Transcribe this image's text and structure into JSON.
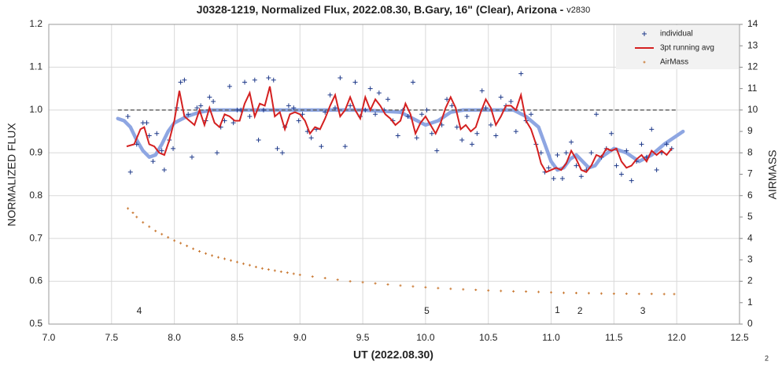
{
  "chart_data": {
    "type": "scatter",
    "title": "J0328-1219, Normalized Flux, 2022.08.30, B.Gary, 16\" (Clear), Arizona -",
    "subtitle": "v2830",
    "x_label": "UT (2022.08.30)",
    "y_label": "NORMALIZED FLUX",
    "y2_label": "AIRMASS",
    "xlim": [
      7.0,
      12.5
    ],
    "xticks": [
      {
        "value": 7,
        "label": "7.0"
      },
      7.5,
      {
        "value": 8,
        "label": "8.0"
      },
      8.5,
      {
        "value": 9,
        "label": "9.0"
      },
      9.5,
      {
        "value": 10,
        "label": "10.0"
      },
      10.5,
      {
        "value": 11,
        "label": "11.0"
      },
      11.5,
      {
        "value": 12,
        "label": "12.0"
      },
      12.5
    ],
    "ylim": [
      0.5,
      1.2
    ],
    "yticks": [
      0.5,
      0.6,
      0.7,
      0.8,
      0.9,
      {
        "value": 1,
        "label": "1.0"
      },
      1.1,
      1.2
    ],
    "y2lim": [
      0,
      14
    ],
    "y2ticks": [
      0,
      1,
      2,
      3,
      4,
      5,
      6,
      7,
      8,
      9,
      10,
      11,
      12,
      13,
      14
    ],
    "grid": true,
    "legend": "upper right",
    "series": [
      {
        "name": "individual",
        "color": "#1f3a8a",
        "marker": "plus",
        "x": [
          7.63,
          7.65,
          7.7,
          7.75,
          7.78,
          7.8,
          7.83,
          7.86,
          7.9,
          7.92,
          7.96,
          7.99,
          8.02,
          8.05,
          8.08,
          8.11,
          8.14,
          8.18,
          8.21,
          8.25,
          8.28,
          8.31,
          8.34,
          8.37,
          8.4,
          8.44,
          8.47,
          8.5,
          8.53,
          8.56,
          8.6,
          8.64,
          8.67,
          8.71,
          8.75,
          8.79,
          8.82,
          8.86,
          8.88,
          8.91,
          8.95,
          8.99,
          9.02,
          9.06,
          9.09,
          9.13,
          9.17,
          9.2,
          9.24,
          9.28,
          9.32,
          9.36,
          9.4,
          9.44,
          9.48,
          9.52,
          9.56,
          9.6,
          9.63,
          9.67,
          9.7,
          9.74,
          9.78,
          9.82,
          9.86,
          9.9,
          9.93,
          9.97,
          10.01,
          10.05,
          10.09,
          10.13,
          10.17,
          10.21,
          10.25,
          10.29,
          10.33,
          10.37,
          10.41,
          10.45,
          10.48,
          10.52,
          10.56,
          10.6,
          10.64,
          10.68,
          10.72,
          10.76,
          10.8,
          10.84,
          10.88,
          10.92,
          10.95,
          10.98,
          11.02,
          11.05,
          11.09,
          11.12,
          11.16,
          11.2,
          11.24,
          11.28,
          11.32,
          11.36,
          11.4,
          11.44,
          11.48,
          11.52,
          11.56,
          11.6,
          11.64,
          11.68,
          11.72,
          11.76,
          11.8,
          11.84,
          11.88,
          11.92,
          11.96
        ],
        "values": [
          0.985,
          0.855,
          0.92,
          0.97,
          0.97,
          0.94,
          0.88,
          0.945,
          0.905,
          0.86,
          0.93,
          0.91,
          1.005,
          1.065,
          1.07,
          0.99,
          0.89,
          1.005,
          1.01,
          0.975,
          1.03,
          1.02,
          0.9,
          0.96,
          0.975,
          1.055,
          0.97,
          1.0,
          1.0,
          1.065,
          0.985,
          1.07,
          0.93,
          1.0,
          1.075,
          1.07,
          0.91,
          0.9,
          0.96,
          1.01,
          1.005,
          0.975,
          0.99,
          0.95,
          0.935,
          0.955,
          0.915,
          0.995,
          1.035,
          1.005,
          1.075,
          0.915,
          1.01,
          1.065,
          0.985,
          1.0,
          1.05,
          0.99,
          1.04,
          1.0,
          1.025,
          0.975,
          0.94,
          1.0,
          0.985,
          1.065,
          0.935,
          0.99,
          1.0,
          0.945,
          0.905,
          0.965,
          1.025,
          1.01,
          0.96,
          0.93,
          0.985,
          0.92,
          0.945,
          1.045,
          1.005,
          0.965,
          0.94,
          1.03,
          1.01,
          1.02,
          0.95,
          1.085,
          0.975,
          0.99,
          0.92,
          0.9,
          0.855,
          0.865,
          0.84,
          0.895,
          0.84,
          0.9,
          0.925,
          0.87,
          0.845,
          0.86,
          0.9,
          0.99,
          0.89,
          0.91,
          0.945,
          0.87,
          0.85,
          0.905,
          0.835,
          0.88,
          0.92,
          0.89,
          0.955,
          0.86,
          0.9,
          0.92,
          0.91
        ]
      },
      {
        "name": "3pt running avg",
        "color": "#d42020",
        "marker": "line",
        "x": [
          7.62,
          7.68,
          7.73,
          7.76,
          7.8,
          7.84,
          7.88,
          7.92,
          7.96,
          8.0,
          8.04,
          8.08,
          8.12,
          8.16,
          8.2,
          8.24,
          8.28,
          8.32,
          8.36,
          8.4,
          8.44,
          8.48,
          8.52,
          8.56,
          8.6,
          8.64,
          8.68,
          8.72,
          8.76,
          8.8,
          8.84,
          8.88,
          8.92,
          8.96,
          9.0,
          9.04,
          9.08,
          9.12,
          9.16,
          9.2,
          9.24,
          9.28,
          9.32,
          9.36,
          9.4,
          9.44,
          9.48,
          9.52,
          9.56,
          9.6,
          9.64,
          9.68,
          9.72,
          9.76,
          9.8,
          9.84,
          9.88,
          9.92,
          9.96,
          10.0,
          10.04,
          10.08,
          10.12,
          10.16,
          10.2,
          10.24,
          10.28,
          10.32,
          10.36,
          10.4,
          10.44,
          10.48,
          10.52,
          10.56,
          10.6,
          10.64,
          10.68,
          10.72,
          10.76,
          10.8,
          10.84,
          10.88,
          10.92,
          10.96,
          11.0,
          11.04,
          11.08,
          11.12,
          11.16,
          11.2,
          11.24,
          11.28,
          11.32,
          11.36,
          11.4,
          11.44,
          11.48,
          11.52,
          11.56,
          11.6,
          11.64,
          11.68,
          11.72,
          11.76,
          11.8,
          11.84,
          11.88,
          11.92,
          11.96
        ],
        "values": [
          0.915,
          0.92,
          0.955,
          0.96,
          0.92,
          0.915,
          0.9,
          0.895,
          0.93,
          0.975,
          1.045,
          0.985,
          0.975,
          0.965,
          1.0,
          0.965,
          1.005,
          0.97,
          0.96,
          0.99,
          0.985,
          0.975,
          0.975,
          1.015,
          1.04,
          0.985,
          1.015,
          1.01,
          1.055,
          0.985,
          0.995,
          0.955,
          0.99,
          0.995,
          0.99,
          0.975,
          0.945,
          0.96,
          0.955,
          0.98,
          1.01,
          1.035,
          0.985,
          1.0,
          1.03,
          1.0,
          0.98,
          1.03,
          1.0,
          1.025,
          1.01,
          0.99,
          0.98,
          0.965,
          0.975,
          1.015,
          0.99,
          0.945,
          0.97,
          0.985,
          0.965,
          0.945,
          0.97,
          1.005,
          1.03,
          1.005,
          0.955,
          0.965,
          0.95,
          0.96,
          0.995,
          1.025,
          1.005,
          0.965,
          0.985,
          1.01,
          1.01,
          1.0,
          1.035,
          0.975,
          0.955,
          0.92,
          0.875,
          0.855,
          0.86,
          0.865,
          0.86,
          0.875,
          0.905,
          0.885,
          0.86,
          0.855,
          0.87,
          0.895,
          0.89,
          0.91,
          0.905,
          0.91,
          0.88,
          0.865,
          0.87,
          0.885,
          0.895,
          0.88,
          0.905,
          0.895,
          0.905,
          0.895,
          0.91
        ]
      },
      {
        "name": "AirMass",
        "color": "#c8762e",
        "marker": "small-plus",
        "axis": "y2",
        "x": [
          7.63,
          7.67,
          7.7,
          7.75,
          7.8,
          7.85,
          7.9,
          7.95,
          8.0,
          8.05,
          8.1,
          8.15,
          8.2,
          8.25,
          8.3,
          8.35,
          8.4,
          8.45,
          8.5,
          8.55,
          8.6,
          8.65,
          8.7,
          8.75,
          8.8,
          8.85,
          8.9,
          8.95,
          9.0,
          9.1,
          9.2,
          9.3,
          9.4,
          9.5,
          9.6,
          9.7,
          9.8,
          9.9,
          10.0,
          10.1,
          10.2,
          10.3,
          10.4,
          10.5,
          10.6,
          10.7,
          10.8,
          10.9,
          11.0,
          11.1,
          11.2,
          11.3,
          11.4,
          11.5,
          11.6,
          11.7,
          11.8,
          11.9,
          11.98
        ],
        "values": [
          5.4,
          5.2,
          5.0,
          4.75,
          4.55,
          4.35,
          4.2,
          4.05,
          3.9,
          3.78,
          3.65,
          3.52,
          3.4,
          3.3,
          3.2,
          3.12,
          3.05,
          2.97,
          2.9,
          2.82,
          2.75,
          2.67,
          2.6,
          2.55,
          2.5,
          2.45,
          2.4,
          2.35,
          2.3,
          2.22,
          2.15,
          2.07,
          2.0,
          1.95,
          1.9,
          1.85,
          1.8,
          1.76,
          1.72,
          1.68,
          1.65,
          1.62,
          1.6,
          1.57,
          1.55,
          1.53,
          1.52,
          1.5,
          1.48,
          1.46,
          1.45,
          1.44,
          1.43,
          1.42,
          1.42,
          1.41,
          1.41,
          1.4,
          1.4
        ]
      }
    ],
    "fit": {
      "color": "#8ea6e2",
      "x": [
        7.55,
        7.6,
        7.65,
        7.7,
        7.75,
        7.8,
        7.85,
        7.9,
        7.95,
        8.0,
        8.1,
        8.2,
        8.3,
        9.0,
        9.5,
        9.8,
        9.9,
        10.0,
        10.1,
        10.2,
        10.3,
        10.7,
        10.8,
        10.9,
        10.95,
        11.0,
        11.05,
        11.1,
        11.15,
        11.2,
        11.25,
        11.3,
        11.35,
        11.4,
        11.5,
        11.6,
        11.7,
        11.8,
        11.9,
        12.05
      ],
      "values": [
        0.98,
        0.975,
        0.96,
        0.93,
        0.905,
        0.89,
        0.895,
        0.92,
        0.95,
        0.97,
        0.985,
        0.995,
        1.0,
        1.0,
        1.0,
        0.995,
        0.98,
        0.965,
        0.975,
        0.995,
        1.0,
        1.0,
        0.985,
        0.96,
        0.92,
        0.88,
        0.86,
        0.865,
        0.885,
        0.895,
        0.88,
        0.865,
        0.87,
        0.89,
        0.91,
        0.9,
        0.88,
        0.895,
        0.92,
        0.95
      ]
    },
    "reference_line": {
      "value": 1.0,
      "xlim": [
        7.55,
        12.0
      ],
      "color": "#666"
    },
    "annotations": [
      {
        "text": "4",
        "x": 7.72,
        "y": 0.53
      },
      {
        "text": "5",
        "x": 10.01,
        "y": 0.53
      },
      {
        "text": "1",
        "x": 11.05,
        "y": 0.532
      },
      {
        "text": "2",
        "x": 11.23,
        "y": 0.53
      },
      {
        "text": "3",
        "x": 11.73,
        "y": 0.53
      }
    ],
    "corner_note": "2"
  }
}
